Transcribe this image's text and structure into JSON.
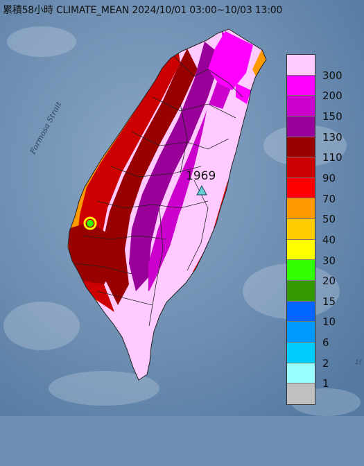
{
  "title": "累積58小時 CLIMATE_MEAN 2024/10/01 03:00~10/03 13:00",
  "strait_label": "Formosa Strait",
  "station": {
    "value": "1969",
    "marker": "triangle-icon",
    "color": "#66cccc"
  },
  "corner_text": "1(",
  "legend": {
    "labels": [
      "300",
      "200",
      "150",
      "130",
      "110",
      "90",
      "70",
      "50",
      "40",
      "30",
      "20",
      "15",
      "10",
      "6",
      "2",
      "1"
    ],
    "colors": [
      "#ffcaff",
      "#ff00ff",
      "#cc00cc",
      "#990099",
      "#990000",
      "#cc0000",
      "#ff0000",
      "#ff9900",
      "#ffcc00",
      "#ffff00",
      "#33ff00",
      "#339900",
      "#0066ff",
      "#0099ff",
      "#00ccff",
      "#99ffff",
      "#c0c0c0"
    ]
  },
  "colors": {
    "sea": "#6f8fb2",
    "land_base": "#ffcaff"
  }
}
